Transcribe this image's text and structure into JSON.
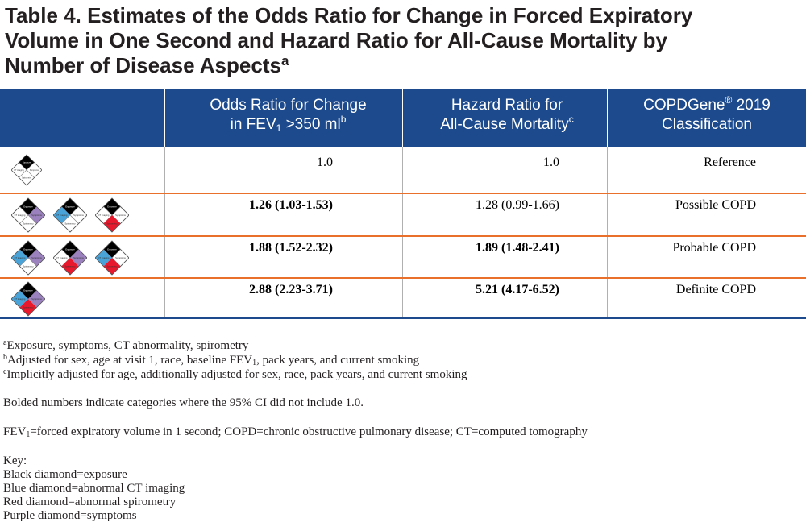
{
  "title": {
    "line1": "Table 4. Estimates of the Odds Ratio for Change in Forced Expiratory",
    "line2": "Volume in One Second and Hazard Ratio for All-Cause Mortality by",
    "line3": "Number of Disease Aspects",
    "footnote_mark": "a"
  },
  "header": {
    "col1_line1": "Odds Ratio for Change",
    "col1_line2_pre": "in FEV",
    "col1_line2_sub": "1",
    "col1_line2_post": " >350 ml",
    "col1_sup": "b",
    "col2_line1": "Hazard Ratio for",
    "col2_line2": "All-Cause Mortality",
    "col2_sup": "c",
    "col3_line1_pre": "COPDGene",
    "col3_line1_sup": "®",
    "col3_line1_post": " 2019",
    "col3_line2": "Classification"
  },
  "rows": [
    {
      "odds": "1.0",
      "hazard": "1.0",
      "classification": "Reference"
    },
    {
      "odds": "1.26 (1.03-1.53)",
      "hazard": "1.28 (0.99-1.66)",
      "classification": "Possible COPD"
    },
    {
      "odds": "1.88 (1.52-2.32)",
      "hazard": "1.89 (1.48-2.41)",
      "classification": "Probable COPD"
    },
    {
      "odds": "2.88 (2.23-3.71)",
      "hazard": "5.21 (4.17-6.52)",
      "classification": "Definite COPD"
    }
  ],
  "diamond_labels": {
    "top": "Exposure",
    "left": "CT imaging",
    "right": "Symptoms",
    "bottom": "Spirometry"
  },
  "colors": {
    "header_bg": "#1c4a8c",
    "row_separator": "#e8702a",
    "exposure": "#000000",
    "ct_imaging": "#4aa3d8",
    "spirometry": "#e8192c",
    "symptoms": "#9b82be"
  },
  "notes": {
    "a_mark": "a",
    "a_text": "Exposure, symptoms, CT abnormality, spirometry",
    "b_mark": "b",
    "b_text_pre": "Adjusted for sex, age at visit 1, race, baseline FEV",
    "b_sub": "1",
    "b_text_post": ", pack years, and current smoking",
    "c_mark": "c",
    "c_text": "Implicitly adjusted for age, additionally adjusted for sex, race, pack years, and current smoking",
    "bold_note": "Bolded numbers indicate categories where the 95% CI did not include 1.0.",
    "abbr_pre": "FEV",
    "abbr_sub": "1",
    "abbr_post": "=forced expiratory volume in 1 second; COPD=chronic obstructive pulmonary disease; CT=computed tomography",
    "key_title": "Key:",
    "key_black": "Black diamond=exposure",
    "key_blue": "Blue diamond=abnormal CT imaging",
    "key_red": "Red diamond=abnormal spirometry",
    "key_purple": "Purple diamond=symptoms"
  }
}
